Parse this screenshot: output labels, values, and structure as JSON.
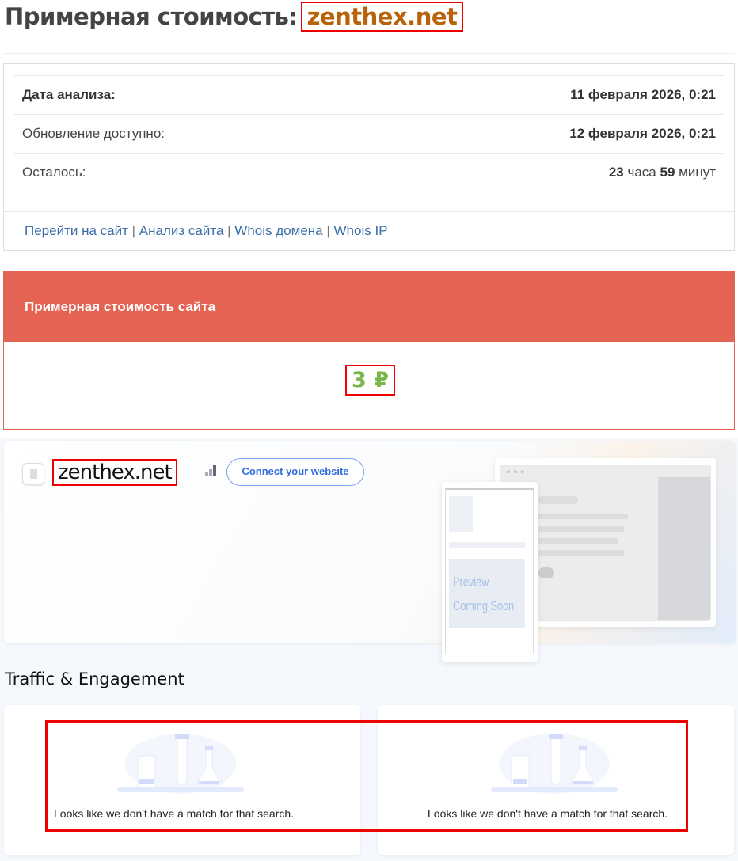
{
  "header": {
    "title": "Примерная стоимость:",
    "domain": "zenthex.net"
  },
  "info": {
    "rows": [
      {
        "label": "Дата анализа:",
        "value": "11 февраля 2026, 0:21"
      },
      {
        "label": "Обновление доступно:",
        "value": "12 февраля 2026, 0:21"
      },
      {
        "label": "Осталось:",
        "hours": "23",
        "hours_unit": "часа",
        "minutes": "59",
        "minutes_unit": "минут"
      }
    ],
    "links": [
      "Перейти на сайт",
      "Анализ сайта",
      "Whois домена",
      "Whois IP"
    ],
    "sep": "|"
  },
  "cost": {
    "title": "Примерная стоимость сайта",
    "value": "3 ₽"
  },
  "hero": {
    "domain": "zenthex.net",
    "connect": "Connect your website",
    "preview": [
      "Preview",
      "Coming Soon"
    ]
  },
  "traffic": {
    "title": "Traffic & Engagement",
    "empty_message": "Looks like we don't have a match for that search."
  }
}
